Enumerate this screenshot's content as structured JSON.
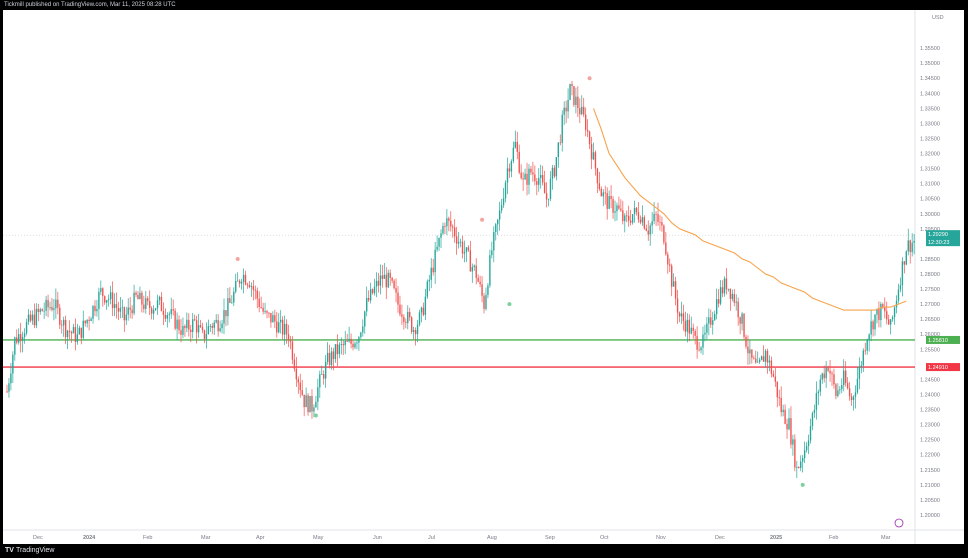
{
  "header": {
    "caption": "Tickmill published on TradingView.com, Mar 11, 2025 08:28 UTC"
  },
  "footer": {
    "logo_mark": "TV",
    "logo_text": "TradingView"
  },
  "colors": {
    "up": "#26a69a",
    "down": "#ef5350",
    "ma": "#f7a34b",
    "support": "#4caf50",
    "resistance": "#f23645",
    "axis_text": "#787b86"
  },
  "chart_data": {
    "type": "candlestick",
    "currency": "USD",
    "ylim": [
      1.195,
      1.365
    ],
    "y_ticks": [
      "1.35500",
      "1.35000",
      "1.34500",
      "1.34000",
      "1.33500",
      "1.33000",
      "1.32500",
      "1.32000",
      "1.31500",
      "1.31000",
      "1.30500",
      "1.30000",
      "1.29500",
      "1.28500",
      "1.28000",
      "1.27500",
      "1.27000",
      "1.26500",
      "1.26000",
      "1.25500",
      "1.24500",
      "1.24000",
      "1.23500",
      "1.23000",
      "1.22500",
      "1.22000",
      "1.21500",
      "1.21000",
      "1.20500",
      "1.20000"
    ],
    "x_ticks": [
      "Dec",
      "2024",
      "Feb",
      "Mar",
      "Apr",
      "May",
      "Jun",
      "Jul",
      "Aug",
      "Sep",
      "Oct",
      "Nov",
      "Dec",
      "2025",
      "Feb",
      "Mar"
    ],
    "price_path": [
      [
        0,
        1.241
      ],
      [
        4,
        1.258
      ],
      [
        10,
        1.263
      ],
      [
        18,
        1.268
      ],
      [
        24,
        1.27
      ],
      [
        30,
        1.262
      ],
      [
        36,
        1.259
      ],
      [
        42,
        1.266
      ],
      [
        48,
        1.274
      ],
      [
        54,
        1.271
      ],
      [
        60,
        1.265
      ],
      [
        66,
        1.272
      ],
      [
        72,
        1.269
      ],
      [
        78,
        1.27
      ],
      [
        84,
        1.266
      ],
      [
        90,
        1.261
      ],
      [
        96,
        1.264
      ],
      [
        100,
        1.259
      ],
      [
        104,
        1.263
      ],
      [
        108,
        1.264
      ],
      [
        114,
        1.27
      ],
      [
        120,
        1.28
      ],
      [
        124,
        1.278
      ],
      [
        128,
        1.272
      ],
      [
        132,
        1.266
      ],
      [
        136,
        1.265
      ],
      [
        140,
        1.262
      ],
      [
        144,
        1.26
      ],
      [
        148,
        1.248
      ],
      [
        152,
        1.238
      ],
      [
        156,
        1.236
      ],
      [
        160,
        1.244
      ],
      [
        164,
        1.251
      ],
      [
        168,
        1.254
      ],
      [
        172,
        1.256
      ],
      [
        176,
        1.257
      ],
      [
        180,
        1.26
      ],
      [
        184,
        1.27
      ],
      [
        188,
        1.275
      ],
      [
        192,
        1.279
      ],
      [
        196,
        1.277
      ],
      [
        200,
        1.27
      ],
      [
        204,
        1.266
      ],
      [
        208,
        1.262
      ],
      [
        212,
        1.266
      ],
      [
        216,
        1.278
      ],
      [
        220,
        1.288
      ],
      [
        224,
        1.298
      ],
      [
        228,
        1.295
      ],
      [
        232,
        1.29
      ],
      [
        236,
        1.285
      ],
      [
        240,
        1.28
      ],
      [
        244,
        1.27
      ],
      [
        248,
        1.288
      ],
      [
        252,
        1.3
      ],
      [
        256,
        1.315
      ],
      [
        260,
        1.323
      ],
      [
        264,
        1.31
      ],
      [
        268,
        1.314
      ],
      [
        272,
        1.312
      ],
      [
        276,
        1.305
      ],
      [
        280,
        1.315
      ],
      [
        284,
        1.33
      ],
      [
        288,
        1.341
      ],
      [
        292,
        1.336
      ],
      [
        296,
        1.33
      ],
      [
        300,
        1.318
      ],
      [
        304,
        1.307
      ],
      [
        308,
        1.303
      ],
      [
        312,
        1.302
      ],
      [
        316,
        1.297
      ],
      [
        320,
        1.3
      ],
      [
        324,
        1.3
      ],
      [
        328,
        1.295
      ],
      [
        332,
        1.299
      ],
      [
        336,
        1.293
      ],
      [
        340,
        1.278
      ],
      [
        344,
        1.266
      ],
      [
        348,
        1.263
      ],
      [
        352,
        1.258
      ],
      [
        356,
        1.257
      ],
      [
        360,
        1.265
      ],
      [
        364,
        1.273
      ],
      [
        368,
        1.277
      ],
      [
        372,
        1.272
      ],
      [
        376,
        1.264
      ],
      [
        380,
        1.252
      ],
      [
        384,
        1.248
      ],
      [
        388,
        1.254
      ],
      [
        392,
        1.246
      ],
      [
        396,
        1.235
      ],
      [
        400,
        1.23
      ],
      [
        404,
        1.215
      ],
      [
        408,
        1.222
      ],
      [
        412,
        1.232
      ],
      [
        416,
        1.245
      ],
      [
        420,
        1.25
      ],
      [
        424,
        1.24
      ],
      [
        428,
        1.245
      ],
      [
        432,
        1.238
      ],
      [
        436,
        1.248
      ],
      [
        440,
        1.26
      ],
      [
        444,
        1.266
      ],
      [
        448,
        1.268
      ],
      [
        452,
        1.262
      ],
      [
        456,
        1.276
      ],
      [
        460,
        1.289
      ],
      [
        464,
        1.291
      ]
    ],
    "ma_path": [
      [
        300,
        1.335
      ],
      [
        304,
        1.328
      ],
      [
        308,
        1.32
      ],
      [
        312,
        1.316
      ],
      [
        316,
        1.312
      ],
      [
        320,
        1.309
      ],
      [
        324,
        1.306
      ],
      [
        328,
        1.304
      ],
      [
        332,
        1.302
      ],
      [
        336,
        1.3
      ],
      [
        340,
        1.297
      ],
      [
        344,
        1.295
      ],
      [
        348,
        1.294
      ],
      [
        352,
        1.293
      ],
      [
        356,
        1.291
      ],
      [
        360,
        1.29
      ],
      [
        364,
        1.289
      ],
      [
        368,
        1.288
      ],
      [
        372,
        1.287
      ],
      [
        376,
        1.285
      ],
      [
        380,
        1.284
      ],
      [
        384,
        1.282
      ],
      [
        388,
        1.28
      ],
      [
        392,
        1.279
      ],
      [
        396,
        1.277
      ],
      [
        400,
        1.276
      ],
      [
        404,
        1.275
      ],
      [
        408,
        1.274
      ],
      [
        412,
        1.272
      ],
      [
        416,
        1.271
      ],
      [
        420,
        1.27
      ],
      [
        424,
        1.269
      ],
      [
        428,
        1.268
      ],
      [
        432,
        1.268
      ],
      [
        436,
        1.268
      ],
      [
        440,
        1.268
      ],
      [
        444,
        1.268
      ],
      [
        448,
        1.269
      ],
      [
        452,
        1.269
      ],
      [
        456,
        1.27
      ],
      [
        460,
        1.271
      ]
    ],
    "pivots_high": [
      [
        118,
        1.285
      ],
      [
        243,
        1.298
      ],
      [
        298,
        1.345
      ]
    ],
    "pivots_low": [
      [
        158,
        1.233
      ],
      [
        257,
        1.27
      ],
      [
        407,
        1.21
      ]
    ],
    "levels": [
      {
        "name": "support",
        "value": 1.2581,
        "label": "1.25810"
      },
      {
        "name": "resistance",
        "value": 1.2491,
        "label": "1.24910"
      }
    ],
    "last_price": {
      "value": 1.2929,
      "label": "1.29290",
      "countdown": "12:30:23"
    }
  }
}
